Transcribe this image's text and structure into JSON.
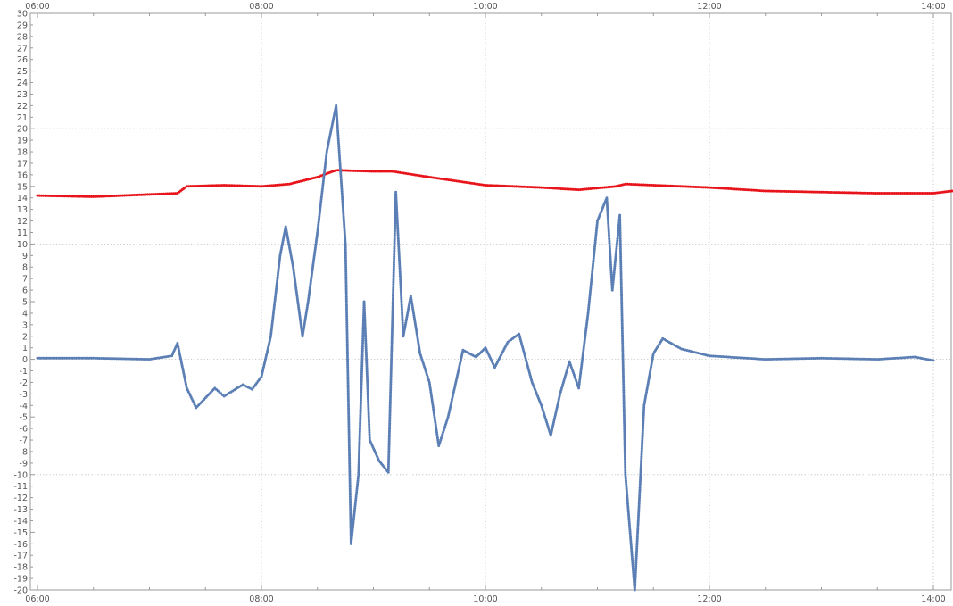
{
  "chart_data": {
    "type": "scatter",
    "title": "",
    "xlabel": "",
    "ylabel": "",
    "xlim": [
      "06:00",
      "14:10"
    ],
    "ylim": [
      -20,
      30
    ],
    "x_ticks": [
      "06:00",
      "08:00",
      "10:00",
      "12:00",
      "14:00"
    ],
    "x_minor_ticks": [
      "06:30",
      "07:00",
      "07:30",
      "08:30",
      "09:00",
      "09:30",
      "10:30",
      "11:00",
      "11:30",
      "12:30",
      "13:00",
      "13:30"
    ],
    "y_ticks": [
      30,
      29,
      28,
      27,
      26,
      25,
      24,
      23,
      22,
      21,
      20,
      19,
      18,
      17,
      16,
      15,
      14,
      13,
      12,
      11,
      10,
      9,
      8,
      7,
      6,
      5,
      4,
      3,
      2,
      1,
      0,
      -1,
      -2,
      -3,
      -4,
      -5,
      -6,
      -7,
      -8,
      -9,
      -10,
      -11,
      -12,
      -13,
      -14,
      -15,
      -16,
      -17,
      -18,
      -19,
      -20
    ],
    "grid": {
      "vertical": [
        "08:00",
        "10:00",
        "12:00",
        "14:00"
      ],
      "horizontal": [
        20,
        10,
        0,
        -10
      ]
    },
    "colors": {
      "series_blue": "#5b7fb5",
      "series_red": "#e8141b",
      "grid": "#b9b9b9",
      "frame": "#9a9a9a"
    },
    "series": [
      {
        "color": "#e8141b",
        "points": [
          [
            "06:00",
            14.2
          ],
          [
            "06:30",
            14.1
          ],
          [
            "07:00",
            14.3
          ],
          [
            "07:15",
            14.4
          ],
          [
            "07:20",
            15.0
          ],
          [
            "07:40",
            15.1
          ],
          [
            "08:00",
            15.0
          ],
          [
            "08:15",
            15.2
          ],
          [
            "08:30",
            15.8
          ],
          [
            "08:40",
            16.4
          ],
          [
            "09:00",
            16.3
          ],
          [
            "09:10",
            16.3
          ],
          [
            "09:30",
            15.8
          ],
          [
            "10:00",
            15.1
          ],
          [
            "10:30",
            14.9
          ],
          [
            "10:50",
            14.7
          ],
          [
            "11:10",
            15.0
          ],
          [
            "11:15",
            15.2
          ],
          [
            "11:30",
            15.1
          ],
          [
            "12:00",
            14.9
          ],
          [
            "12:30",
            14.6
          ],
          [
            "13:00",
            14.5
          ],
          [
            "13:30",
            14.4
          ],
          [
            "14:00",
            14.4
          ],
          [
            "14:10",
            14.6
          ]
        ]
      },
      {
        "color": "#5b7fb5",
        "points": [
          [
            "06:00",
            0.1
          ],
          [
            "06:30",
            0.1
          ],
          [
            "07:00",
            0.0
          ],
          [
            "07:12",
            0.3
          ],
          [
            "07:15",
            1.4
          ],
          [
            "07:20",
            -2.5
          ],
          [
            "07:25",
            -4.2
          ],
          [
            "07:35",
            -2.5
          ],
          [
            "07:40",
            -3.2
          ],
          [
            "07:50",
            -2.2
          ],
          [
            "07:55",
            -2.6
          ],
          [
            "08:00",
            -1.5
          ],
          [
            "08:05",
            2.0
          ],
          [
            "08:10",
            9.0
          ],
          [
            "08:13",
            11.5
          ],
          [
            "08:17",
            8.0
          ],
          [
            "08:22",
            2.0
          ],
          [
            "08:25",
            5.0
          ],
          [
            "08:30",
            11.0
          ],
          [
            "08:35",
            18.0
          ],
          [
            "08:40",
            22.0
          ],
          [
            "08:45",
            10.0
          ],
          [
            "08:48",
            -16.0
          ],
          [
            "08:52",
            -10.0
          ],
          [
            "08:55",
            5.0
          ],
          [
            "08:58",
            -7.0
          ],
          [
            "09:03",
            -8.8
          ],
          [
            "09:08",
            -9.8
          ],
          [
            "09:12",
            14.5
          ],
          [
            "09:16",
            2.0
          ],
          [
            "09:20",
            5.5
          ],
          [
            "09:25",
            0.5
          ],
          [
            "09:30",
            -2.0
          ],
          [
            "09:35",
            -7.5
          ],
          [
            "09:40",
            -5.0
          ],
          [
            "09:48",
            0.8
          ],
          [
            "09:55",
            0.2
          ],
          [
            "10:00",
            1.0
          ],
          [
            "10:05",
            -0.7
          ],
          [
            "10:12",
            1.5
          ],
          [
            "10:18",
            2.2
          ],
          [
            "10:25",
            -2.0
          ],
          [
            "10:30",
            -4.0
          ],
          [
            "10:35",
            -6.6
          ],
          [
            "10:40",
            -3.0
          ],
          [
            "10:45",
            -0.2
          ],
          [
            "10:50",
            -2.5
          ],
          [
            "10:55",
            4.0
          ],
          [
            "11:00",
            12.0
          ],
          [
            "11:05",
            14.0
          ],
          [
            "11:08",
            6.0
          ],
          [
            "11:12",
            12.5
          ],
          [
            "11:15",
            -10.0
          ],
          [
            "11:20",
            -20.0
          ],
          [
            "11:25",
            -4.0
          ],
          [
            "11:30",
            0.5
          ],
          [
            "11:35",
            1.8
          ],
          [
            "11:45",
            0.9
          ],
          [
            "12:00",
            0.3
          ],
          [
            "12:30",
            0.0
          ],
          [
            "13:00",
            0.1
          ],
          [
            "13:30",
            0.0
          ],
          [
            "13:50",
            0.2
          ],
          [
            "14:00",
            -0.1
          ]
        ]
      }
    ]
  }
}
